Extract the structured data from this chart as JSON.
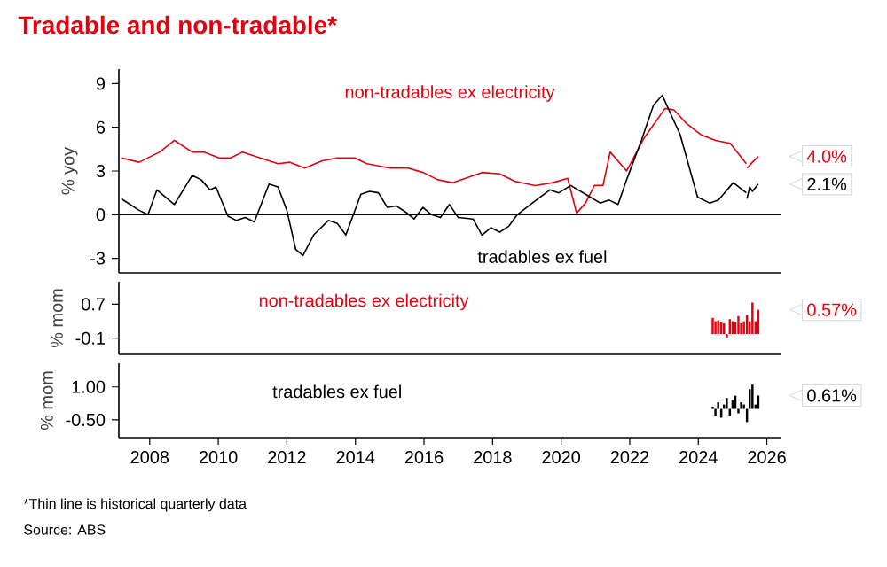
{
  "chart_data": [
    {
      "type": "line",
      "title": "Tradable and non-tradable*",
      "ylabel": "% yoy",
      "xlim": [
        2007.1,
        2026.4
      ],
      "ylim": [
        -4,
        10
      ],
      "yticks": [
        -3,
        0,
        3,
        6,
        9
      ],
      "tick_labels": "y",
      "series": [
        {
          "name": "non-tradables ex electricity",
          "color": "#e3000f",
          "x": [
            2007.17,
            2007.69,
            2008.29,
            2008.72,
            2009.24,
            2009.59,
            2010.02,
            2010.36,
            2010.71,
            2011.22,
            2011.74,
            2012.09,
            2012.52,
            2013.03,
            2013.47,
            2013.98,
            2014.33,
            2015.02,
            2015.53,
            2015.97,
            2016.4,
            2016.83,
            2017.34,
            2017.69,
            2018.21,
            2018.64,
            2019.24,
            2019.76,
            2020.19,
            2020.45,
            2020.71,
            2020.97,
            2021.22,
            2021.43,
            2021.91,
            2022.43,
            2023.03,
            2023.29,
            2023.64,
            2024.07,
            2024.5,
            2024.93,
            2025.4
          ],
          "values": [
            3.9,
            3.6,
            4.3,
            5.1,
            4.3,
            4.3,
            3.9,
            3.9,
            4.3,
            3.9,
            3.5,
            3.6,
            3.2,
            3.7,
            3.9,
            3.9,
            3.5,
            3.2,
            3.2,
            2.9,
            2.4,
            2.2,
            2.6,
            2.9,
            2.8,
            2.3,
            2.0,
            2.2,
            2.5,
            0.1,
            0.8,
            2.0,
            2.0,
            4.3,
            3.0,
            5.3,
            7.3,
            7.2,
            6.3,
            5.5,
            5.1,
            4.9,
            3.5
          ]
        },
        {
          "color": "#e3000f",
          "x": [
            2025.42,
            2025.58,
            2025.75
          ],
          "values": [
            3.2,
            3.6,
            4.0
          ]
        },
        {
          "name": "tradables ex fuel",
          "color": "#000000",
          "x": [
            2007.17,
            2007.69,
            2007.95,
            2008.21,
            2008.72,
            2009.24,
            2009.5,
            2009.76,
            2009.93,
            2010.28,
            2010.53,
            2010.79,
            2011.05,
            2011.48,
            2011.74,
            2012.0,
            2012.26,
            2012.47,
            2012.78,
            2013.21,
            2013.47,
            2013.72,
            2014.16,
            2014.41,
            2014.67,
            2014.93,
            2015.19,
            2015.45,
            2015.71,
            2015.97,
            2016.22,
            2016.48,
            2016.74,
            2017.0,
            2017.43,
            2017.69,
            2017.95,
            2018.21,
            2018.47,
            2018.72,
            2019.16,
            2019.67,
            2019.93,
            2020.28,
            2020.71,
            2021.14,
            2021.4,
            2021.66,
            2021.91,
            2022.34,
            2022.69,
            2022.95,
            2023.47,
            2023.98,
            2024.33,
            2024.59,
            2025.02,
            2025.4
          ],
          "values": [
            1.1,
            0.3,
            0.0,
            1.7,
            0.7,
            2.7,
            2.4,
            1.7,
            1.9,
            -0.1,
            -0.4,
            -0.2,
            -0.5,
            2.1,
            1.9,
            0.3,
            -2.4,
            -2.8,
            -1.4,
            -0.4,
            -0.6,
            -1.4,
            1.4,
            1.6,
            1.5,
            0.5,
            0.6,
            0.2,
            -0.3,
            0.5,
            0.0,
            -0.2,
            0.7,
            -0.2,
            -0.3,
            -1.4,
            -0.9,
            -1.2,
            -0.8,
            0.0,
            0.8,
            1.7,
            1.5,
            2.0,
            1.4,
            0.8,
            1.0,
            0.7,
            2.4,
            5.1,
            7.5,
            8.2,
            5.5,
            1.2,
            0.8,
            1.0,
            2.2,
            1.5
          ]
        },
        {
          "color": "#000000",
          "x": [
            2025.42,
            2025.5,
            2025.58,
            2025.75
          ],
          "values": [
            1.1,
            1.9,
            1.6,
            2.1
          ]
        }
      ],
      "ref_lines": [
        {
          "axis": "y",
          "value": 0,
          "color": "#000000"
        }
      ],
      "annotations": [
        "4.0%",
        "2.1%"
      ]
    },
    {
      "type": "bar",
      "ylabel": "% mom",
      "xlim": [
        2007.1,
        2026.4
      ],
      "ylim": [
        -0.48,
        1.23
      ],
      "yticks": [
        -0.1,
        0.7
      ],
      "tick_labels": "y",
      "series": [
        {
          "name": "non-tradables ex electricity",
          "color": "#e3000f",
          "x": [
            2024.42,
            2024.5,
            2024.58,
            2024.67,
            2024.75,
            2024.83,
            2024.92,
            2025.0,
            2025.08,
            2025.17,
            2025.25,
            2025.33,
            2025.42,
            2025.5,
            2025.58,
            2025.67,
            2025.75
          ],
          "values": [
            0.38,
            0.3,
            0.32,
            0.28,
            0.25,
            -0.08,
            0.35,
            0.3,
            0.28,
            0.42,
            0.25,
            0.3,
            0.45,
            0.3,
            0.74,
            0.3,
            0.57
          ]
        }
      ],
      "annotations": [
        "0.57%"
      ]
    },
    {
      "type": "bar",
      "ylabel": "% mom",
      "xlim": [
        2007.1,
        2026.4
      ],
      "ylim": [
        -1.31,
        2.08
      ],
      "yticks": [
        {
          "value": -0.5,
          "label": "-0.50"
        },
        {
          "value": 1,
          "label": "1.00"
        }
      ],
      "xticks": [
        2008,
        2010,
        2012,
        2014,
        2016,
        2018,
        2020,
        2022,
        2024,
        2026
      ],
      "series": [
        {
          "name": "tradables ex fuel",
          "color": "#000000",
          "x": [
            2024.42,
            2024.5,
            2024.58,
            2024.67,
            2024.75,
            2024.83,
            2024.92,
            2025.0,
            2025.08,
            2025.17,
            2025.25,
            2025.33,
            2025.42,
            2025.5,
            2025.58,
            2025.67,
            2025.75
          ],
          "values": [
            0.1,
            -0.3,
            0.3,
            -0.4,
            0.2,
            0.5,
            -0.3,
            0.4,
            0.6,
            -0.2,
            0.3,
            0.2,
            -0.6,
            0.9,
            1.1,
            0.2,
            0.61
          ]
        }
      ],
      "annotations": [
        "0.61%",
        "*Thin line is historical quarterly data",
        "Source: ABS"
      ]
    }
  ]
}
